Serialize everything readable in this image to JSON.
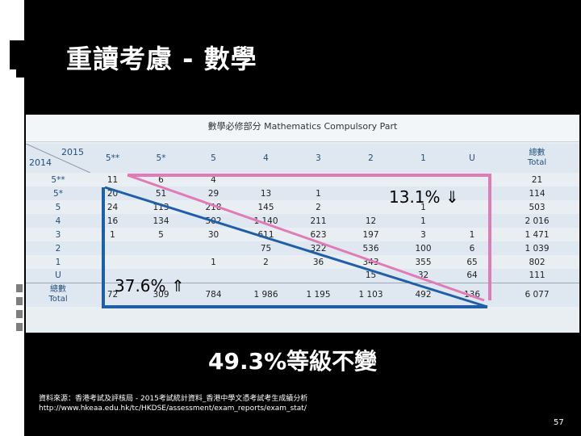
{
  "slide": {
    "title": "重讀考慮 - 數學",
    "page_number": "57",
    "summary": "49.3%等級不變",
    "source_line1": "資料來源：香港考試及評核局 - 2015考試統計資料_香港中學文憑考試考生成績分析",
    "source_line2": "http://www.hkeaa.edu.hk/tc/HKDSE/assessment/exam_reports/exam_stat/"
  },
  "table": {
    "caption": "數學必修部分 Mathematics Compulsory Part",
    "col_year": "2015",
    "row_year": "2014",
    "columns": [
      "5**",
      "5*",
      "5",
      "4",
      "3",
      "2",
      "1",
      "U"
    ],
    "total_col_label": [
      "總數",
      "Total"
    ],
    "rows": [
      {
        "label": "5**",
        "cells": [
          "11",
          "6",
          "4",
          "",
          "",
          "",
          "",
          ""
        ],
        "total": "21"
      },
      {
        "label": "5*",
        "cells": [
          "20",
          "51",
          "29",
          "13",
          "1",
          "",
          "",
          ""
        ],
        "total": "114"
      },
      {
        "label": "5",
        "cells": [
          "24",
          "113",
          "218",
          "145",
          "2",
          "",
          "1",
          ""
        ],
        "total": "503"
      },
      {
        "label": "4",
        "cells": [
          "16",
          "134",
          "502",
          "1 140",
          "211",
          "12",
          "1",
          ""
        ],
        "total": "2 016"
      },
      {
        "label": "3",
        "cells": [
          "1",
          "5",
          "30",
          "611",
          "623",
          "197",
          "3",
          "1"
        ],
        "total": "1 471"
      },
      {
        "label": "2",
        "cells": [
          "",
          "",
          "",
          "75",
          "322",
          "536",
          "100",
          "6"
        ],
        "total": "1 039"
      },
      {
        "label": "1",
        "cells": [
          "",
          "",
          "1",
          "2",
          "36",
          "343",
          "355",
          "65"
        ],
        "total": "802"
      },
      {
        "label": "U",
        "cells": [
          "",
          "",
          "",
          "",
          "",
          "15",
          "32",
          "64"
        ],
        "total": "111"
      }
    ],
    "total_row_label": [
      "總數",
      "Total"
    ],
    "totals": [
      "72",
      "309",
      "784",
      "1 986",
      "1 195",
      "1 103",
      "492",
      "136"
    ],
    "grand_total": "6 077"
  },
  "annotations": {
    "upper_pct": "13.1%",
    "upper_arrow": "⇓",
    "lower_pct": "37.6%",
    "lower_arrow": "⇑",
    "pink_color": "#e07bb5",
    "blue_color": "#1f5fa8"
  }
}
